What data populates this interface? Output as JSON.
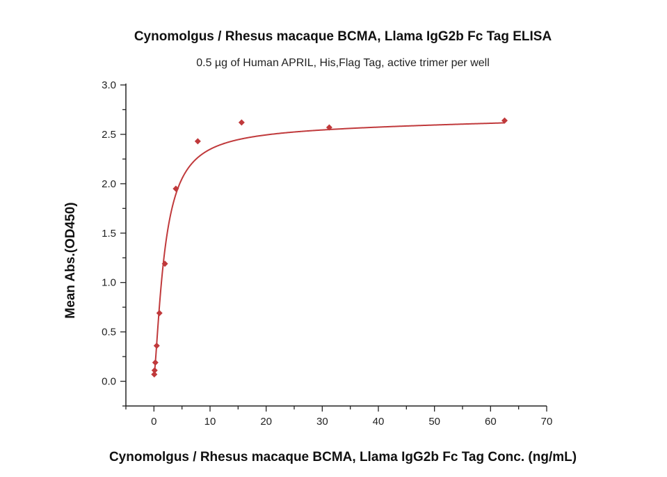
{
  "chart_data": {
    "type": "scatter",
    "title": "Cynomolgus / Rhesus macaque BCMA, Llama IgG2b Fc Tag ELISA",
    "subtitle": "0.5 µg of Human APRIL, His,Flag Tag, active trimer per well",
    "xlabel": "Cynomolgus / Rhesus macaque BCMA, Llama IgG2b Fc Tag Conc. (ng/mL)",
    "ylabel": "Mean Abs.(OD450)",
    "xlim": [
      -5,
      70
    ],
    "ylim": [
      -0.25,
      3.0
    ],
    "xticks": [
      "0",
      "10",
      "20",
      "30",
      "40",
      "50",
      "60",
      "70"
    ],
    "yticks": [
      "0.0",
      "0.5",
      "1.0",
      "1.5",
      "2.0",
      "2.5",
      "3.0"
    ],
    "grid": false,
    "series": [
      {
        "name": "ELISA",
        "color": "#c0393b",
        "marker": "diamond",
        "x": [
          0.061,
          0.122,
          0.244,
          0.488,
          0.977,
          1.953,
          3.906,
          7.813,
          15.625,
          31.25,
          62.5
        ],
        "y": [
          0.07,
          0.11,
          0.19,
          0.36,
          0.69,
          1.19,
          1.95,
          2.43,
          2.62,
          2.57,
          2.64
        ]
      }
    ],
    "fit": {
      "type": "4PL",
      "color": "#c0393b"
    }
  }
}
